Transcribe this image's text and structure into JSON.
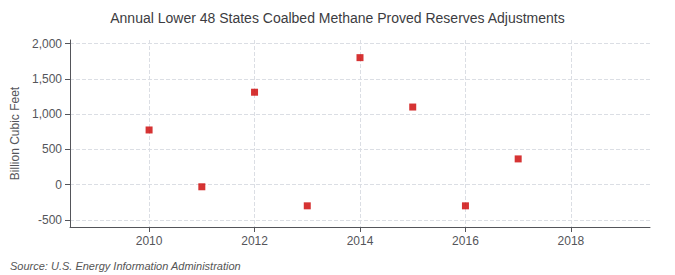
{
  "chart_data": {
    "type": "scatter",
    "title": "Annual Lower 48 States Coalbed Methane Proved Reserves Adjustments",
    "ylabel": "Billion Cubic Feet",
    "annotations": [
      "Source: U.S. Energy Information Administration"
    ],
    "x": [
      2010,
      2011,
      2012,
      2013,
      2014,
      2015,
      2016,
      2017
    ],
    "values": [
      775,
      -30,
      1310,
      -300,
      1800,
      1100,
      -300,
      365
    ],
    "color": "#cc0000",
    "marker": "square",
    "xlim": [
      2008.5,
      2019.5
    ],
    "xticks": [
      2010,
      2012,
      2014,
      2016,
      2018
    ],
    "ylim": [
      -600,
      2050
    ],
    "yticks": [
      -500,
      0,
      500,
      {
        "value": 1000,
        "label": "1,000"
      },
      {
        "value": 1500,
        "label": "1,500"
      },
      {
        "value": 2000,
        "label": "2,000"
      }
    ],
    "grid": true
  }
}
